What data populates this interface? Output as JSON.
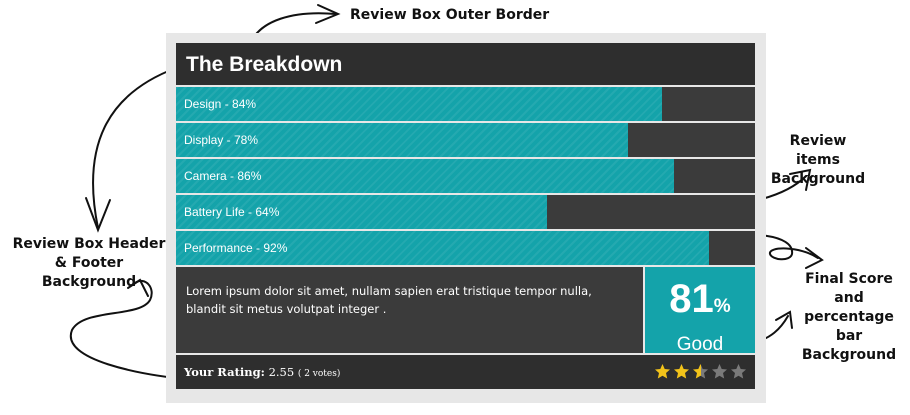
{
  "annotations": {
    "outer_border": "Review Box Outer Border",
    "items_bg": [
      "Review items",
      "Background"
    ],
    "header_footer": [
      "Review Box Header",
      "& Footer  Background"
    ],
    "final_score": [
      "Final Score and",
      "percentage bar",
      "Background"
    ]
  },
  "review": {
    "title": "The Breakdown",
    "items": [
      {
        "label": "Design - 84%",
        "score": 84
      },
      {
        "label": "Display - 78%",
        "score": 78
      },
      {
        "label": "Camera - 86%",
        "score": 86
      },
      {
        "label": "Battery Life - 64%",
        "score": 64
      },
      {
        "label": "Performance - 92%",
        "score": 92
      }
    ],
    "summary": "Lorem ipsum dolor sit amet, nullam sapien erat tristique tempor nulla, blandit sit metus volutpat integer .",
    "final_score": "81",
    "final_unit": "%",
    "final_word": "Good",
    "footer": {
      "rating_label": "Your Rating:",
      "rating_value": "2.55",
      "votes": "( 2 votes)",
      "stars": 2.55,
      "stars_max": 5
    }
  },
  "colors": {
    "accent": "#14a3aa",
    "item_bg": "#3b3b3b",
    "header_bg": "#2e2e2e",
    "outer_border": "#e7e7e7",
    "star_on": "#f2c31a",
    "star_off": "#7a7a7a"
  }
}
